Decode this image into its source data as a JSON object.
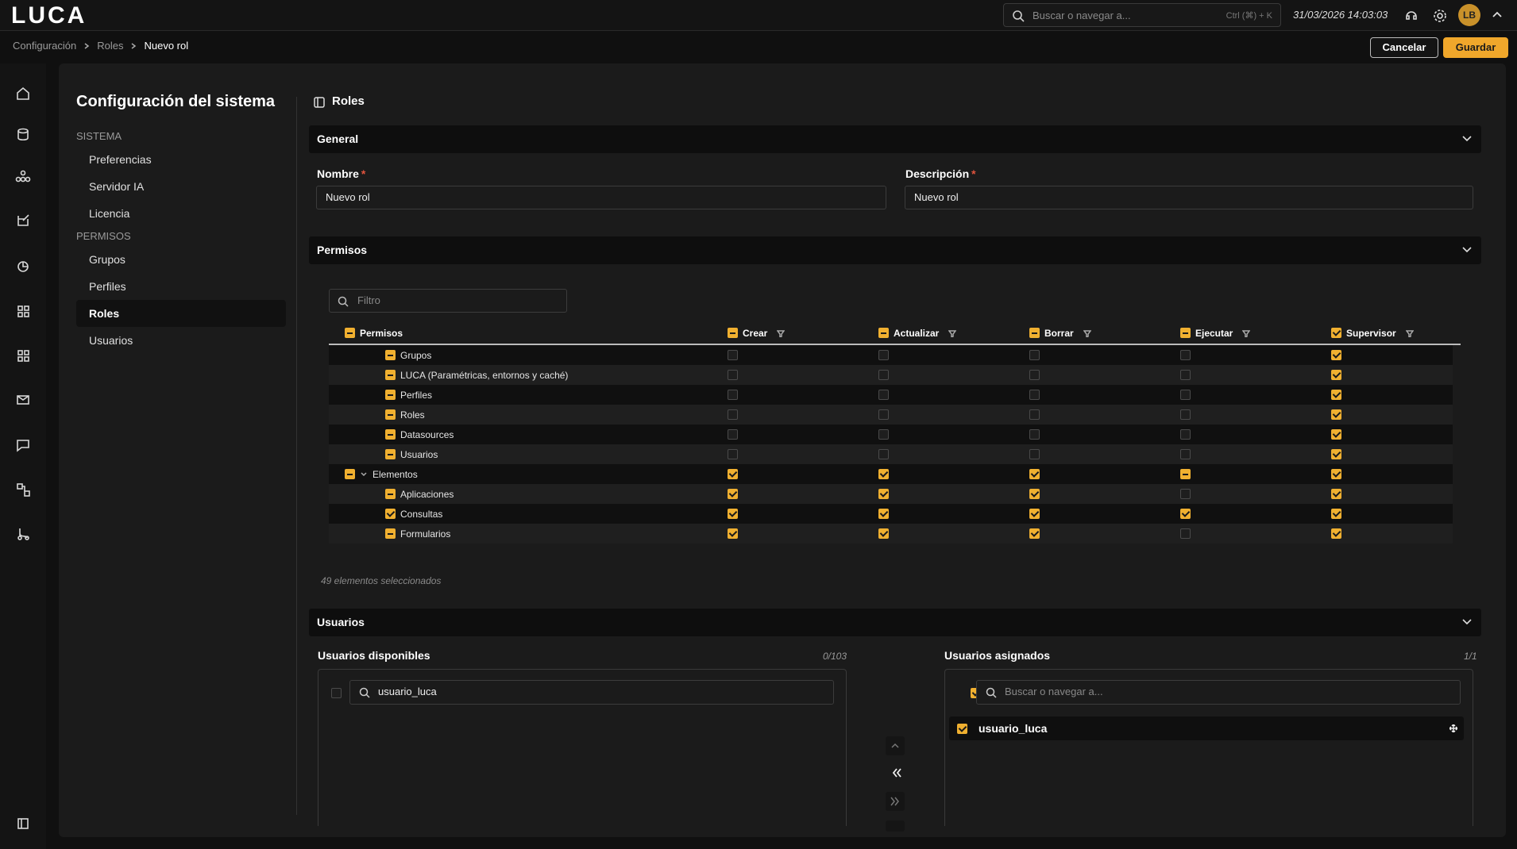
{
  "header": {
    "logo": "LUCA",
    "search_placeholder": "Buscar o navegar a...",
    "shortcut": "Ctrl (⌘) + K",
    "datetime": "31/03/2026 14:03:03",
    "avatar": "LB"
  },
  "breadcrumb": [
    "Configuración",
    "Roles",
    "Nuevo rol"
  ],
  "actions": {
    "cancel": "Cancelar",
    "save": "Guardar"
  },
  "sidebar": {
    "title": "Configuración del sistema",
    "sections": [
      {
        "label": "SISTEMA",
        "items": [
          {
            "label": "Preferencias"
          },
          {
            "label": "Servidor IA"
          },
          {
            "label": "Licencia"
          }
        ]
      },
      {
        "label": "PERMISOS",
        "items": [
          {
            "label": "Grupos"
          },
          {
            "label": "Perfiles"
          },
          {
            "label": "Roles",
            "active": true
          },
          {
            "label": "Usuarios"
          }
        ]
      }
    ]
  },
  "page": {
    "title": "Roles"
  },
  "general": {
    "title": "General",
    "fields": [
      {
        "label": "Nombre",
        "required_mark": "*",
        "value": "Nuevo rol"
      },
      {
        "label": "Descripción",
        "required_mark": "*",
        "value": "Nuevo rol"
      }
    ]
  },
  "permissions": {
    "title": "Permisos",
    "filter_placeholder": "Filtro",
    "columns": [
      {
        "label": "Permisos",
        "state": "partial"
      },
      {
        "label": "Crear",
        "state": "partial"
      },
      {
        "label": "Actualizar",
        "state": "partial"
      },
      {
        "label": "Borrar",
        "state": "partial"
      },
      {
        "label": "Ejecutar",
        "state": "partial"
      },
      {
        "label": "Supervisor",
        "state": "checked"
      }
    ],
    "rows": [
      {
        "label": "Grupos",
        "level": 1,
        "state": "partial",
        "checks": [
          "unchecked",
          "unchecked",
          "unchecked",
          "unchecked",
          "checked"
        ]
      },
      {
        "label": "LUCA (Paramétricas, entornos y caché)",
        "level": 1,
        "state": "partial",
        "checks": [
          "unchecked",
          "unchecked",
          "unchecked",
          "unchecked",
          "checked"
        ]
      },
      {
        "label": "Perfiles",
        "level": 1,
        "state": "partial",
        "checks": [
          "unchecked",
          "unchecked",
          "unchecked",
          "unchecked",
          "checked"
        ]
      },
      {
        "label": "Roles",
        "level": 1,
        "state": "partial",
        "checks": [
          "unchecked",
          "unchecked",
          "unchecked",
          "unchecked",
          "checked"
        ]
      },
      {
        "label": "Datasources",
        "level": 1,
        "state": "partial",
        "checks": [
          "unchecked",
          "unchecked",
          "unchecked",
          "unchecked",
          "checked"
        ]
      },
      {
        "label": "Usuarios",
        "level": 1,
        "state": "partial",
        "checks": [
          "unchecked",
          "unchecked",
          "unchecked",
          "unchecked",
          "checked"
        ]
      },
      {
        "label": "Elementos",
        "level": 0,
        "expanded": true,
        "state": "partial",
        "checks": [
          "checked",
          "checked",
          "checked",
          "partial",
          "checked"
        ]
      },
      {
        "label": "Aplicaciones",
        "level": 1,
        "state": "partial",
        "checks": [
          "checked",
          "checked",
          "checked",
          "unchecked",
          "checked"
        ]
      },
      {
        "label": "Consultas",
        "level": 1,
        "state": "checked",
        "checks": [
          "checked",
          "checked",
          "checked",
          "checked",
          "checked"
        ]
      },
      {
        "label": "Formularios",
        "level": 1,
        "state": "partial",
        "checks": [
          "checked",
          "checked",
          "checked",
          "unchecked",
          "checked"
        ]
      }
    ],
    "footer": "49 elementos seleccionados"
  },
  "users": {
    "title": "Usuarios",
    "available": {
      "title": "Usuarios disponibles",
      "count": "0/103",
      "search_value": "usuario_luca"
    },
    "assigned": {
      "title": "Usuarios asignados",
      "count": "1/1",
      "search_placeholder": "Buscar o navegar a...",
      "items": [
        "usuario_luca"
      ]
    }
  }
}
